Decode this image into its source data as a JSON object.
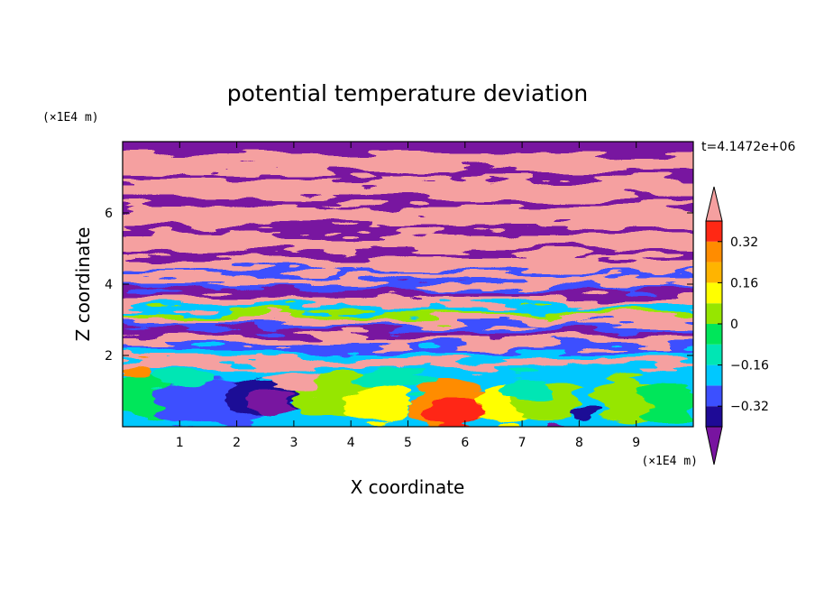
{
  "chart_data": {
    "type": "heatmap",
    "title": "potential temperature deviation",
    "xlabel": "X coordinate",
    "ylabel": "Z coordinate",
    "x_unit": "(×1E4 m)",
    "y_unit": "(×1E4 m)",
    "time_label": "t=4.1472e+06",
    "xlim": [
      0,
      10
    ],
    "ylim": [
      0,
      8
    ],
    "x_ticks": [
      "1",
      "2",
      "3",
      "4",
      "5",
      "6",
      "7",
      "8",
      "9"
    ],
    "y_ticks": [
      "2",
      "4",
      "6"
    ],
    "colorbar": {
      "levels": [
        -0.4,
        -0.32,
        -0.24,
        -0.16,
        -0.08,
        0,
        0.08,
        0.16,
        0.24,
        0.32,
        0.4
      ],
      "tick_labels": [
        "0.32",
        "0.16",
        "0",
        "−0.16",
        "−0.32"
      ],
      "tick_values": [
        0.32,
        0.16,
        0,
        -0.16,
        -0.32
      ],
      "colors": [
        "#1e0a96",
        "#3c50ff",
        "#00c8ff",
        "#00e6b4",
        "#00e65a",
        "#96e600",
        "#ffff00",
        "#ffb400",
        "#ff8c00",
        "#ff2814"
      ],
      "extend_low_color": "#7814a0",
      "extend_high_color": "#f5a0a0"
    }
  }
}
